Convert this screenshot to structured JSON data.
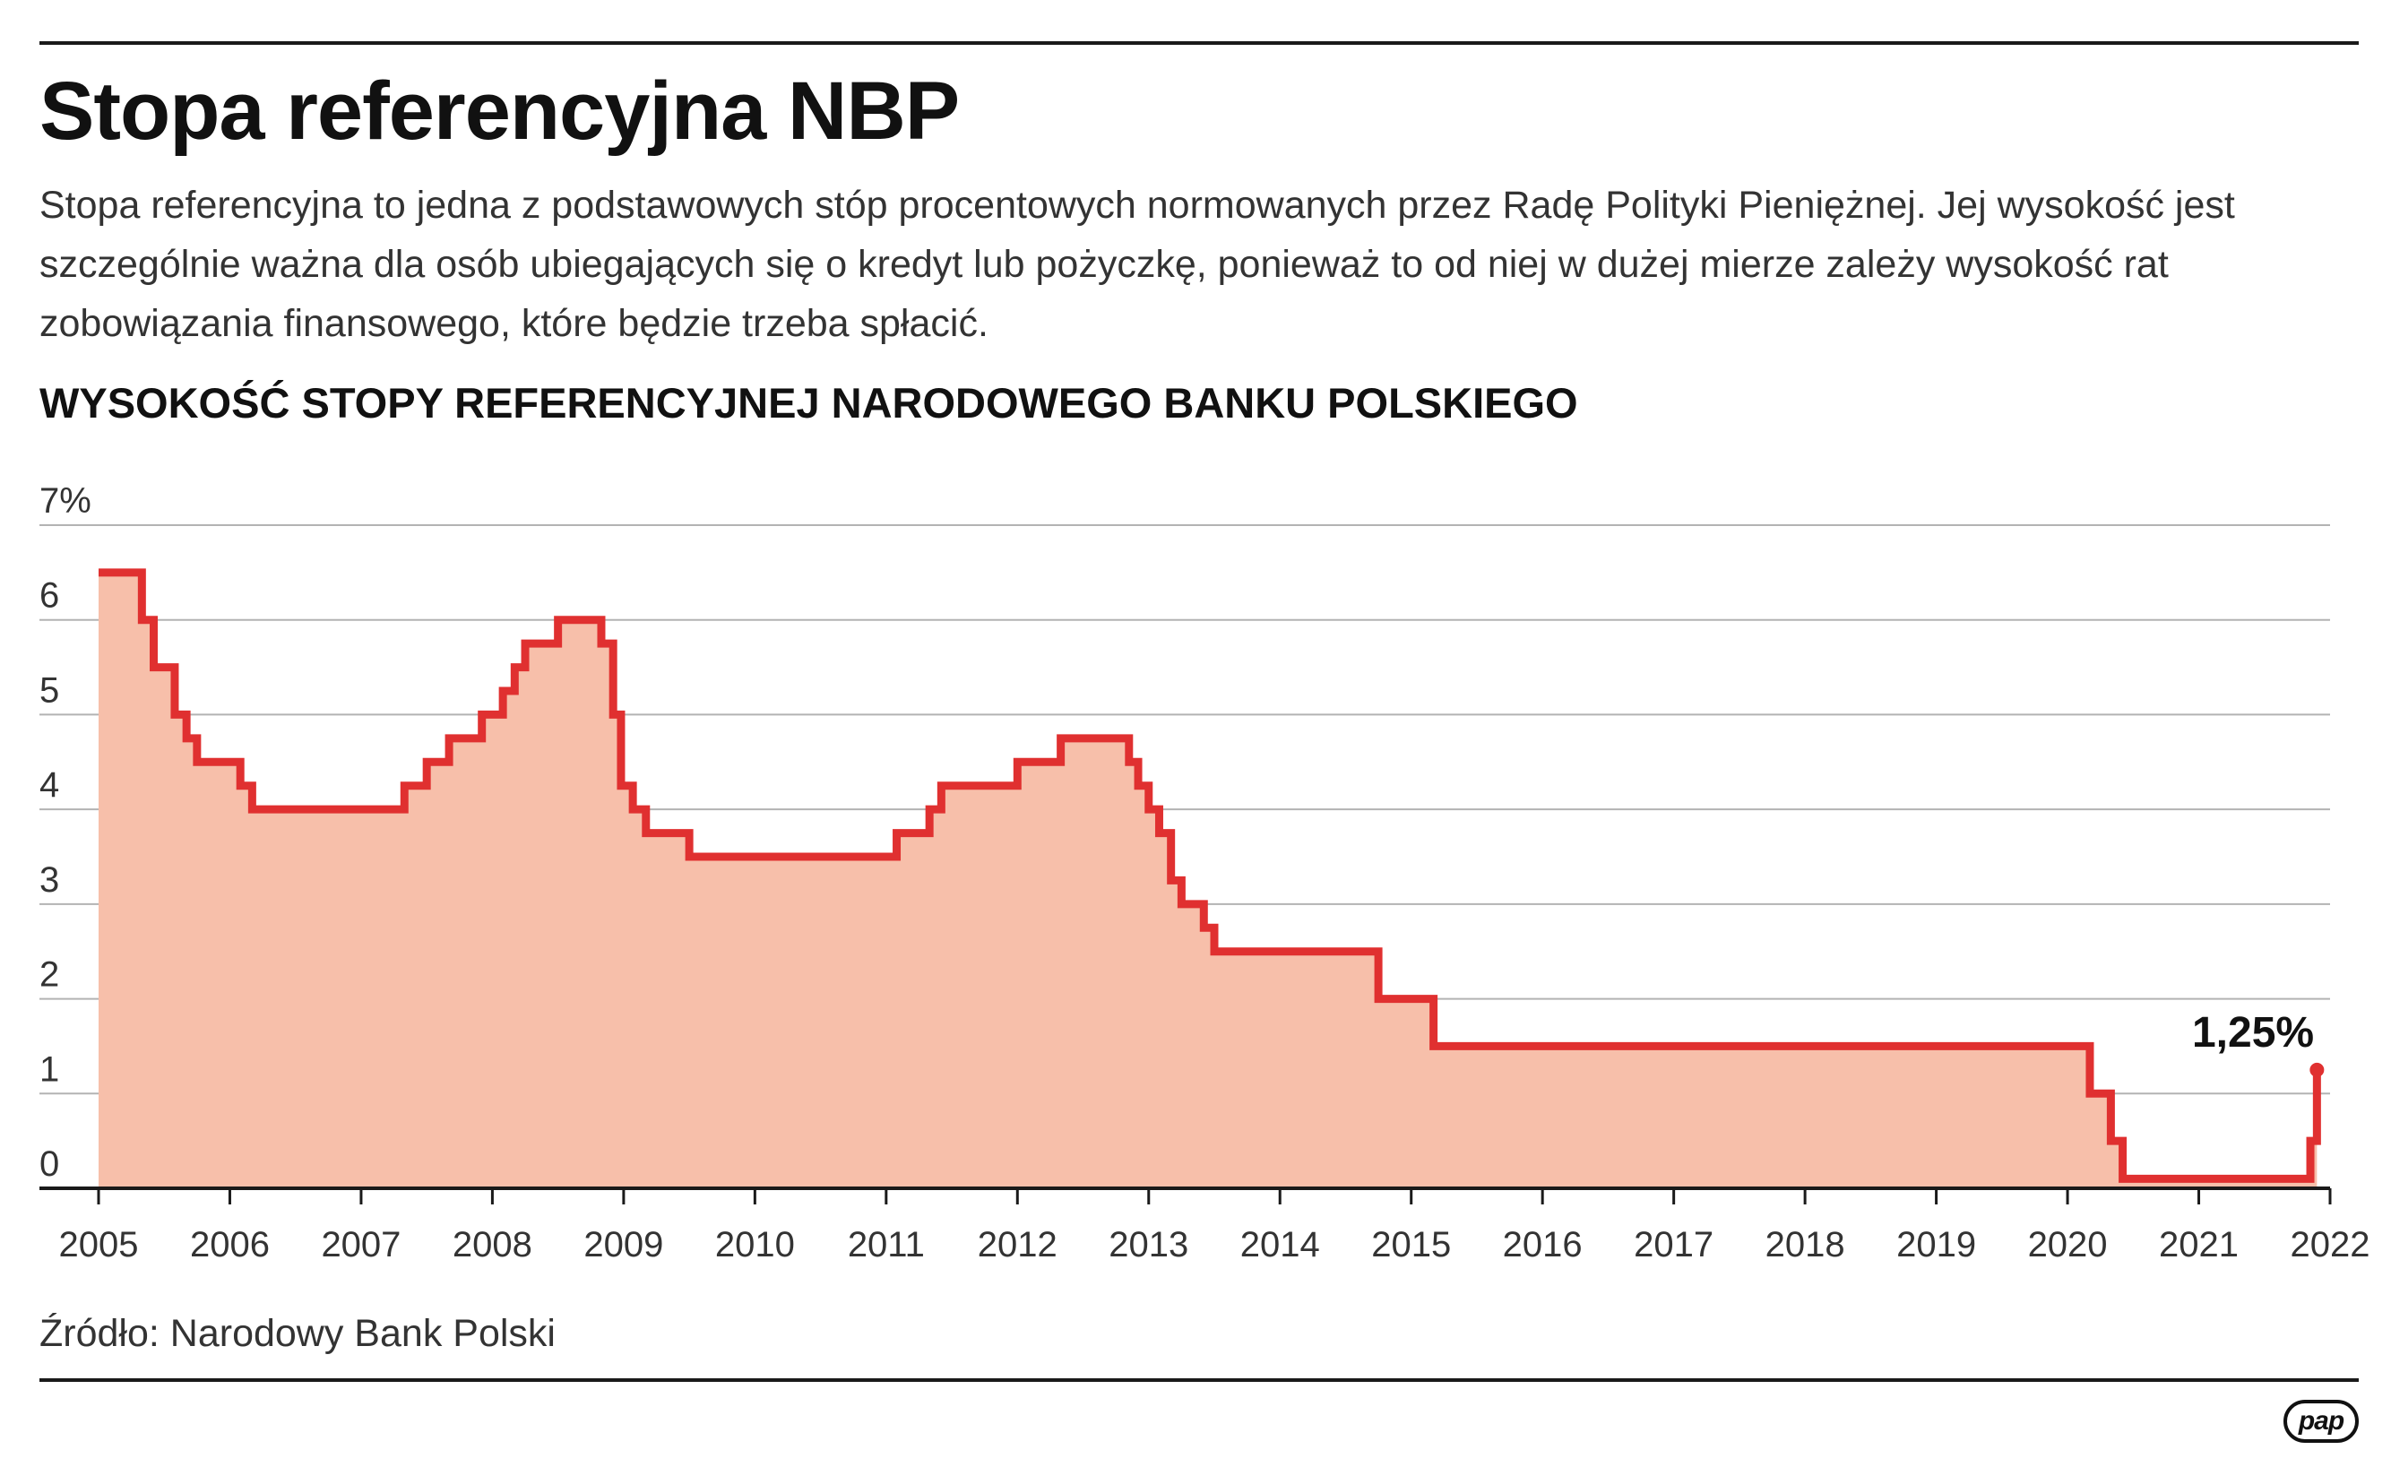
{
  "title": "Stopa referencyjna NBP",
  "description": "Stopa referencyjna to jedna z podstawowych stóp procentowych normowanych przez Radę Polityki Pieniężnej. Jej wysokość jest szczególnie ważna dla osób ubiegających się o kredyt lub pożyczkę, ponieważ to od niej w dużej mierze zależy wysokość rat zobowiązania finansowego, które będzie trzeba spłacić.",
  "source": "Źródło: Narodowy Bank Polski",
  "logo_text": "pap",
  "colors": {
    "line": "#e03030",
    "fill": "#f7bfaa",
    "grid": "#b3b3b3",
    "axis": "#1a1a1a",
    "text": "#1a1a1a"
  },
  "chart_data": {
    "type": "area",
    "title": "WYSOKOŚĆ STOPY REFERENCYJNEJ NARODOWEGO BANKU POLSKIEGO",
    "ylabel": "",
    "xlabel": "",
    "xlim": [
      2005,
      2022
    ],
    "ylim": [
      0,
      7
    ],
    "y_ticks": [
      "0",
      "1",
      "2",
      "3",
      "4",
      "5",
      "6",
      "7%"
    ],
    "x_ticks": [
      "2005",
      "2006",
      "2007",
      "2008",
      "2009",
      "2010",
      "2011",
      "2012",
      "2013",
      "2014",
      "2015",
      "2016",
      "2017",
      "2018",
      "2019",
      "2020",
      "2021",
      "2022"
    ],
    "grid": true,
    "step": true,
    "annotation": {
      "text": "1,25%",
      "x": 2021.85,
      "y": 1.25
    },
    "series": [
      {
        "x": [
          2005.0,
          2005.25,
          2005.33,
          2005.42,
          2005.58,
          2005.67,
          2005.75,
          2006.08,
          2006.17,
          2006.25,
          2007.33,
          2007.5,
          2007.67,
          2007.92,
          2008.08,
          2008.17,
          2008.25,
          2008.33,
          2008.5,
          2008.83,
          2008.92,
          2008.98,
          2009.07,
          2009.17,
          2009.25,
          2009.5,
          2010.0,
          2011.0,
          2011.08,
          2011.25,
          2011.33,
          2011.42,
          2012.0,
          2012.33,
          2012.85,
          2012.92,
          2013.0,
          2013.08,
          2013.17,
          2013.25,
          2013.42,
          2013.5,
          2013.58,
          2014.0,
          2014.75,
          2015.17,
          2016.0,
          2020.17,
          2020.25,
          2020.33,
          2020.42,
          2021.0,
          2021.8,
          2021.85,
          2021.9
        ],
        "y": [
          6.5,
          6.5,
          6.0,
          5.5,
          5.0,
          4.75,
          4.5,
          4.25,
          4.0,
          4.0,
          4.25,
          4.5,
          4.75,
          5.0,
          5.25,
          5.5,
          5.75,
          5.75,
          6.0,
          5.75,
          5.0,
          4.25,
          4.0,
          3.75,
          3.75,
          3.5,
          3.5,
          3.5,
          3.75,
          3.75,
          4.0,
          4.25,
          4.5,
          4.75,
          4.5,
          4.25,
          4.0,
          3.75,
          3.25,
          3.0,
          2.75,
          2.5,
          2.5,
          2.5,
          2.0,
          1.5,
          1.5,
          1.0,
          1.0,
          0.5,
          0.1,
          0.1,
          0.1,
          0.5,
          1.25
        ]
      }
    ]
  }
}
